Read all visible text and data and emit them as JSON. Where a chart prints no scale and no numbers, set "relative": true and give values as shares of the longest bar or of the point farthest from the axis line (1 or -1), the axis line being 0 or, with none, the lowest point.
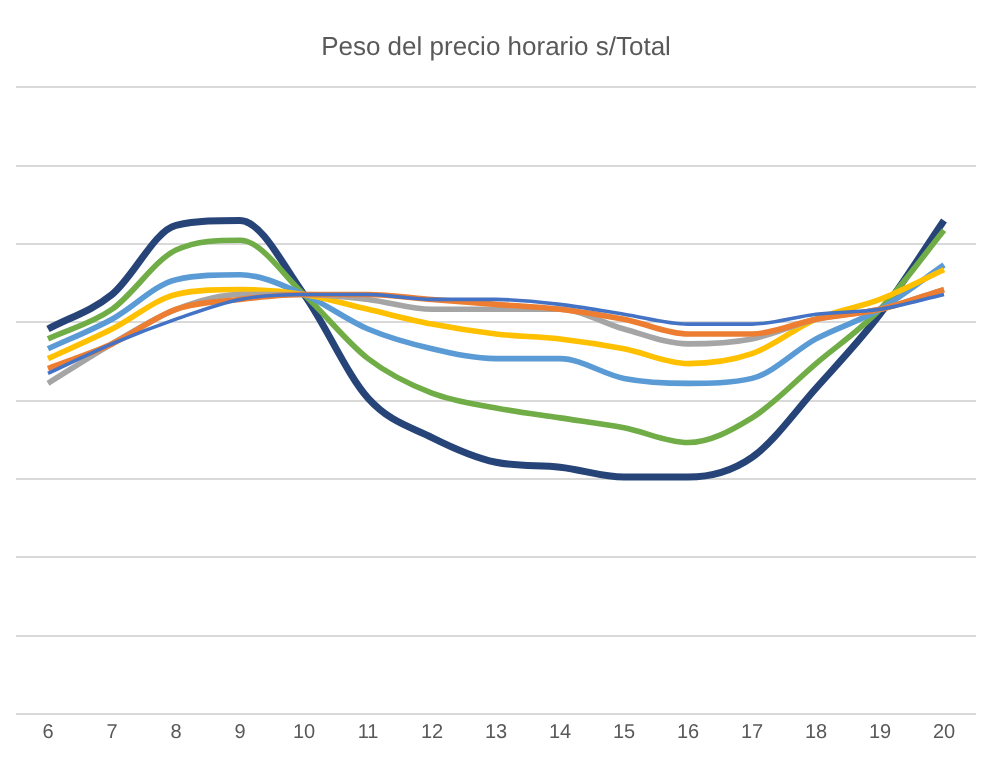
{
  "chart_data": {
    "type": "line",
    "title": "Peso del precio horario s/Total",
    "relative": true,
    "grid": "y",
    "legend": false,
    "marker": "none",
    "line_style": "solid",
    "categories": [
      "6",
      "7",
      "8",
      "9",
      "10",
      "11",
      "12",
      "13",
      "14",
      "15",
      "16",
      "17",
      "18",
      "19",
      "20"
    ],
    "series": [
      {
        "color": "#4472c4",
        "values": [
          0.69,
          0.75,
          0.8,
          0.84,
          0.85,
          0.85,
          0.84,
          0.84,
          0.83,
          0.81,
          0.79,
          0.79,
          0.81,
          0.82,
          0.85
        ]
      },
      {
        "color": "#ed7d31",
        "values": [
          0.7,
          0.75,
          0.82,
          0.84,
          0.85,
          0.85,
          0.84,
          0.83,
          0.82,
          0.8,
          0.77,
          0.77,
          0.8,
          0.82,
          0.86
        ]
      },
      {
        "color": "#a5a5a5",
        "values": [
          0.67,
          0.75,
          0.82,
          0.85,
          0.85,
          0.84,
          0.82,
          0.82,
          0.82,
          0.78,
          0.75,
          0.76,
          0.8,
          0.82,
          0.86
        ]
      },
      {
        "color": "#ffc000",
        "values": [
          0.72,
          0.78,
          0.85,
          0.86,
          0.85,
          0.82,
          0.79,
          0.77,
          0.76,
          0.74,
          0.71,
          0.73,
          0.8,
          0.84,
          0.9
        ]
      },
      {
        "color": "#5b9bd5",
        "values": [
          0.74,
          0.8,
          0.88,
          0.89,
          0.85,
          0.78,
          0.74,
          0.72,
          0.72,
          0.68,
          0.67,
          0.68,
          0.76,
          0.82,
          0.91
        ]
      },
      {
        "color": "#70ad47",
        "values": [
          0.76,
          0.82,
          0.94,
          0.96,
          0.85,
          0.72,
          0.65,
          0.62,
          0.6,
          0.58,
          0.55,
          0.6,
          0.71,
          0.82,
          0.98
        ]
      },
      {
        "color": "#264478",
        "values": [
          0.78,
          0.85,
          0.99,
          1,
          0.85,
          0.64,
          0.56,
          0.51,
          0.5,
          0.48,
          0.48,
          0.52,
          0.66,
          0.81,
          1
        ]
      }
    ]
  }
}
